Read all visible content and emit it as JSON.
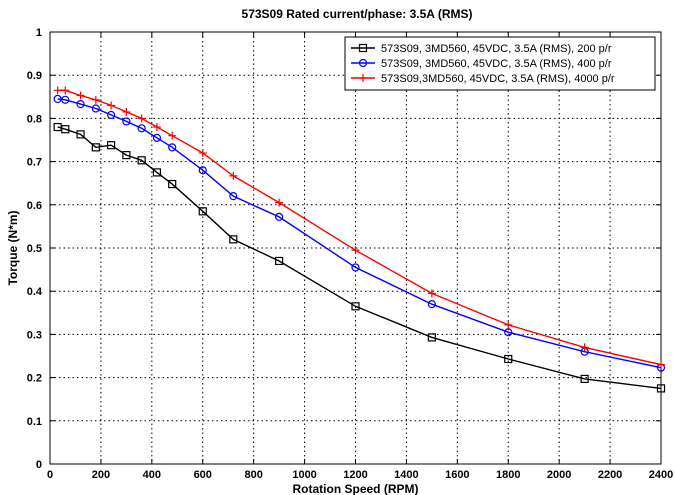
{
  "chart_data": {
    "type": "line",
    "title": "573S09 Rated current/phase: 3.5A (RMS)",
    "xlabel": "Rotation Speed (RPM)",
    "ylabel": "Torque (N*m)",
    "xlim": [
      0,
      2400
    ],
    "ylim": [
      0,
      1
    ],
    "xticks": [
      0,
      200,
      400,
      600,
      800,
      1000,
      1200,
      1400,
      1600,
      1800,
      2000,
      2200,
      2400
    ],
    "yticks": [
      0,
      0.1,
      0.2,
      0.3,
      0.4,
      0.5,
      0.6,
      0.7,
      0.8,
      0.9,
      1
    ],
    "xtick_labels": [
      "0",
      "200",
      "400",
      "600",
      "800",
      "1000",
      "1200",
      "1400",
      "1600",
      "1800",
      "2000",
      "2200",
      "2400"
    ],
    "ytick_labels": [
      "0",
      "0.1",
      "0.2",
      "0.3",
      "0.4",
      "0.5",
      "0.6",
      "0.7",
      "0.8",
      "0.9",
      "1"
    ],
    "grid": true,
    "legend_position": "top-right",
    "series": [
      {
        "name": "573S09, 3MD560, 45VDC, 3.5A (RMS), 200 p/r",
        "color": "#000000",
        "marker": "square",
        "x": [
          30,
          60,
          120,
          180,
          240,
          300,
          360,
          420,
          480,
          600,
          720,
          900,
          1200,
          1500,
          1800,
          2100,
          2400
        ],
        "y": [
          0.78,
          0.775,
          0.763,
          0.733,
          0.738,
          0.715,
          0.703,
          0.675,
          0.648,
          0.585,
          0.52,
          0.47,
          0.365,
          0.293,
          0.243,
          0.197,
          0.175
        ]
      },
      {
        "name": "573S09, 3MD560, 45VDC, 3.5A (RMS), 400 p/r",
        "color": "#0000ff",
        "marker": "circle",
        "x": [
          30,
          60,
          120,
          180,
          240,
          300,
          360,
          420,
          480,
          600,
          720,
          900,
          1200,
          1500,
          1800,
          2100,
          2400
        ],
        "y": [
          0.845,
          0.843,
          0.833,
          0.823,
          0.808,
          0.793,
          0.777,
          0.755,
          0.733,
          0.68,
          0.62,
          0.572,
          0.455,
          0.37,
          0.305,
          0.26,
          0.223
        ]
      },
      {
        "name": "573S09,3MD560, 45VDC, 3.5A (RMS), 4000 p/r",
        "color": "#ff0000",
        "marker": "plus",
        "x": [
          30,
          60,
          120,
          180,
          240,
          300,
          360,
          420,
          480,
          600,
          720,
          900,
          1200,
          1500,
          1800,
          2100,
          2400
        ],
        "y": [
          0.865,
          0.865,
          0.853,
          0.843,
          0.83,
          0.815,
          0.8,
          0.78,
          0.76,
          0.72,
          0.667,
          0.605,
          0.495,
          0.395,
          0.322,
          0.27,
          0.23
        ]
      }
    ]
  }
}
